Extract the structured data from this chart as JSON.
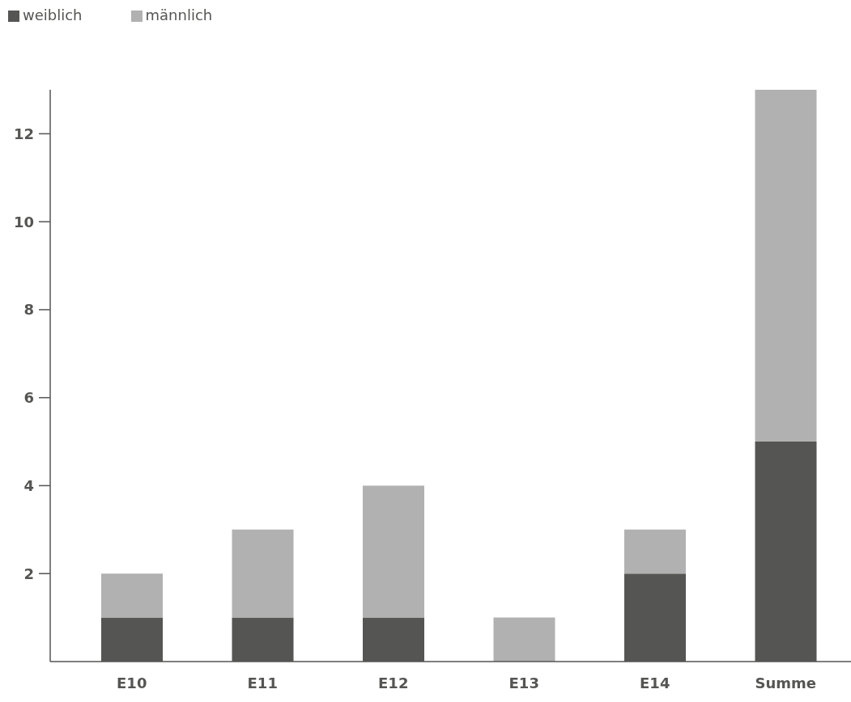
{
  "chart_data": {
    "type": "bar",
    "stacked": true,
    "categories": [
      "E10",
      "E11",
      "E12",
      "E13",
      "E14",
      "Summe"
    ],
    "series": [
      {
        "name": "weiblich",
        "color": "#555553",
        "values": [
          1,
          1,
          1,
          0,
          2,
          5
        ]
      },
      {
        "name": "männlich",
        "color": "#b1b1b1",
        "values": [
          1,
          2,
          3,
          1,
          1,
          8
        ]
      }
    ],
    "ylim": [
      0,
      13
    ],
    "yticks": [
      2,
      4,
      6,
      8,
      10,
      12
    ],
    "grid": false,
    "legend": "top left"
  }
}
